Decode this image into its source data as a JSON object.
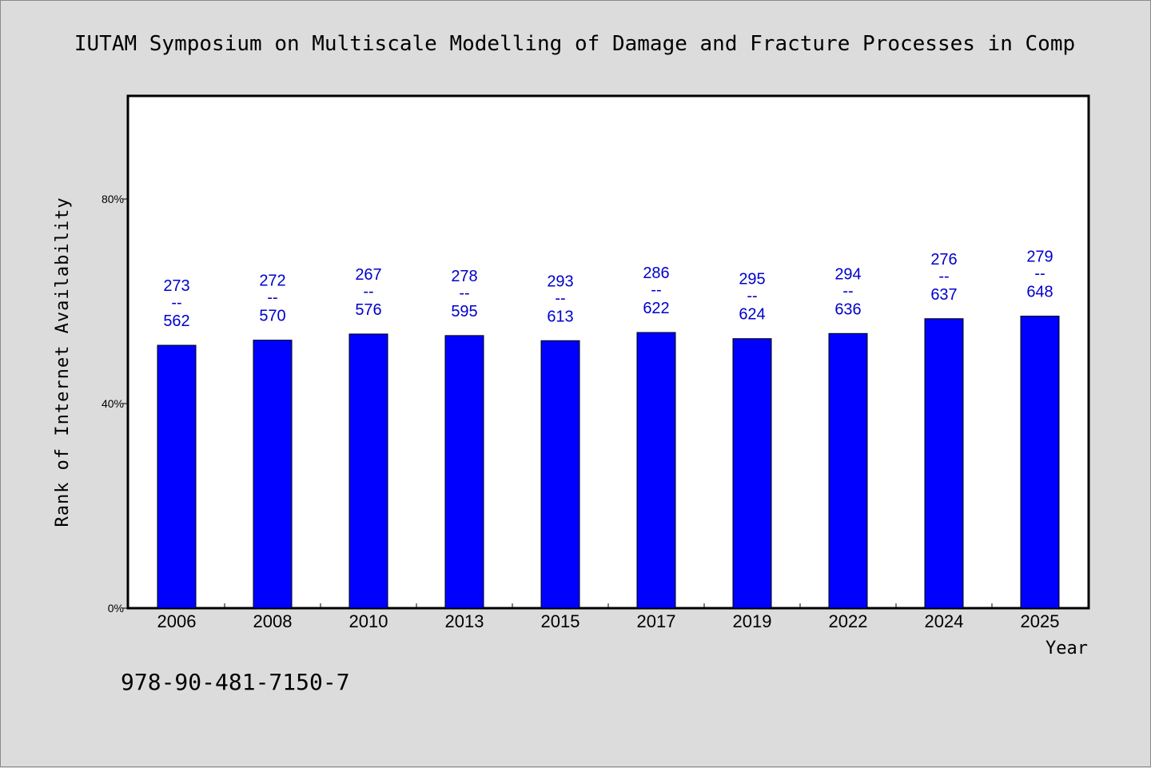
{
  "chart_data": {
    "type": "bar",
    "title": "IUTAM Symposium on Multiscale Modelling of Damage and Fracture Processes in Comp",
    "xlabel": "Year",
    "ylabel": "Rank of Internet Availability",
    "categories": [
      "2006",
      "2008",
      "2010",
      "2013",
      "2015",
      "2017",
      "2019",
      "2022",
      "2024",
      "2025"
    ],
    "values": [
      51.4,
      52.4,
      53.6,
      53.3,
      52.3,
      53.9,
      52.7,
      53.7,
      56.6,
      57.1
    ],
    "data_labels": [
      {
        "top": "273",
        "sep": "--",
        "bottom": "562"
      },
      {
        "top": "272",
        "sep": "--",
        "bottom": "570"
      },
      {
        "top": "267",
        "sep": "--",
        "bottom": "576"
      },
      {
        "top": "278",
        "sep": "--",
        "bottom": "595"
      },
      {
        "top": "293",
        "sep": "--",
        "bottom": "613"
      },
      {
        "top": "286",
        "sep": "--",
        "bottom": "622"
      },
      {
        "top": "295",
        "sep": "--",
        "bottom": "624"
      },
      {
        "top": "294",
        "sep": "--",
        "bottom": "636"
      },
      {
        "top": "276",
        "sep": "--",
        "bottom": "637"
      },
      {
        "top": "279",
        "sep": "--",
        "bottom": "648"
      }
    ],
    "yticks": [
      {
        "value": 0,
        "label": "0%"
      },
      {
        "value": 40,
        "label": "40%"
      },
      {
        "value": 80,
        "label": "80%"
      }
    ],
    "ylim": [
      0,
      100
    ],
    "grid": false,
    "bar_color": "#0000ff",
    "label_color": "#0000cc"
  },
  "footer": {
    "isbn": "978-90-481-7150-7"
  }
}
